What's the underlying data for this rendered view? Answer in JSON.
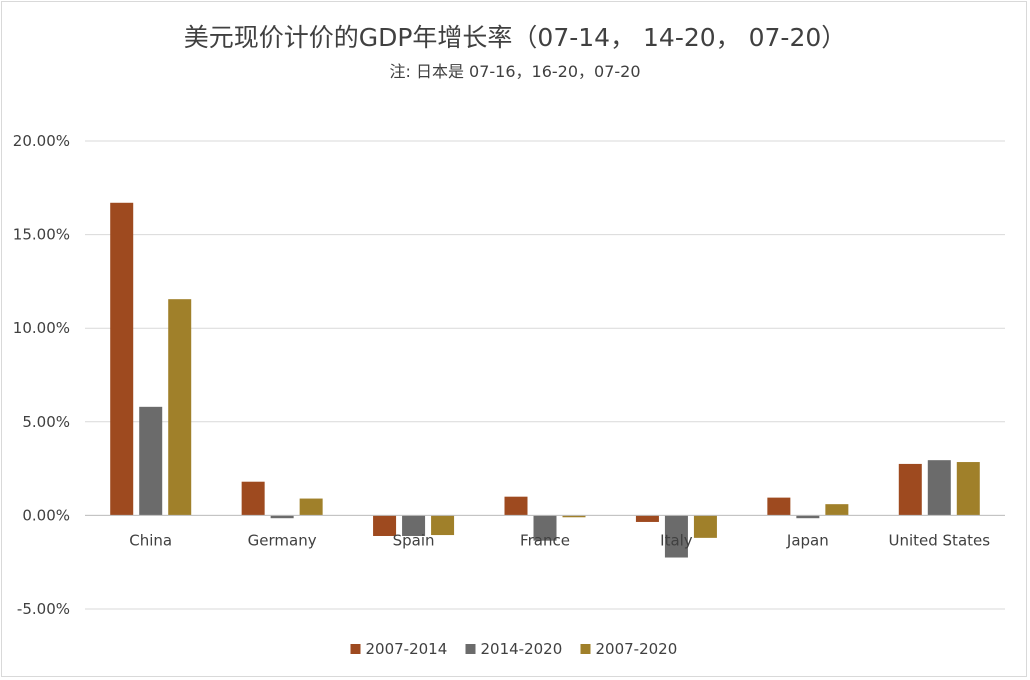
{
  "chart_data": {
    "type": "bar",
    "title": "美元现价计价的GDP年增长率（07-14， 14-20， 07-20）",
    "subtitle": "注: 日本是 07-16，16-20，07-20",
    "categories": [
      "China",
      "Germany",
      "Spain",
      "France",
      "Italy",
      "Japan",
      "United States"
    ],
    "series": [
      {
        "name": "2007-2014",
        "color": "#9e4a1f",
        "values": [
          16.7,
          1.8,
          -1.1,
          1.0,
          -0.35,
          0.95,
          2.75
        ]
      },
      {
        "name": "2014-2020",
        "color": "#6b6b6b",
        "values": [
          5.8,
          -0.15,
          -1.1,
          -1.35,
          -2.25,
          -0.15,
          2.95
        ]
      },
      {
        "name": "2007-2020",
        "color": "#a0802a",
        "values": [
          11.55,
          0.9,
          -1.05,
          -0.1,
          -1.2,
          0.6,
          2.85
        ]
      }
    ],
    "ylim": [
      -5,
      20
    ],
    "yticks": [
      "-5.00%",
      "0.00%",
      "5.00%",
      "10.00%",
      "15.00%",
      "20.00%"
    ],
    "ytick_values": [
      -5,
      0,
      5,
      10,
      15,
      20
    ],
    "grid": true,
    "legend_position": "bottom"
  }
}
